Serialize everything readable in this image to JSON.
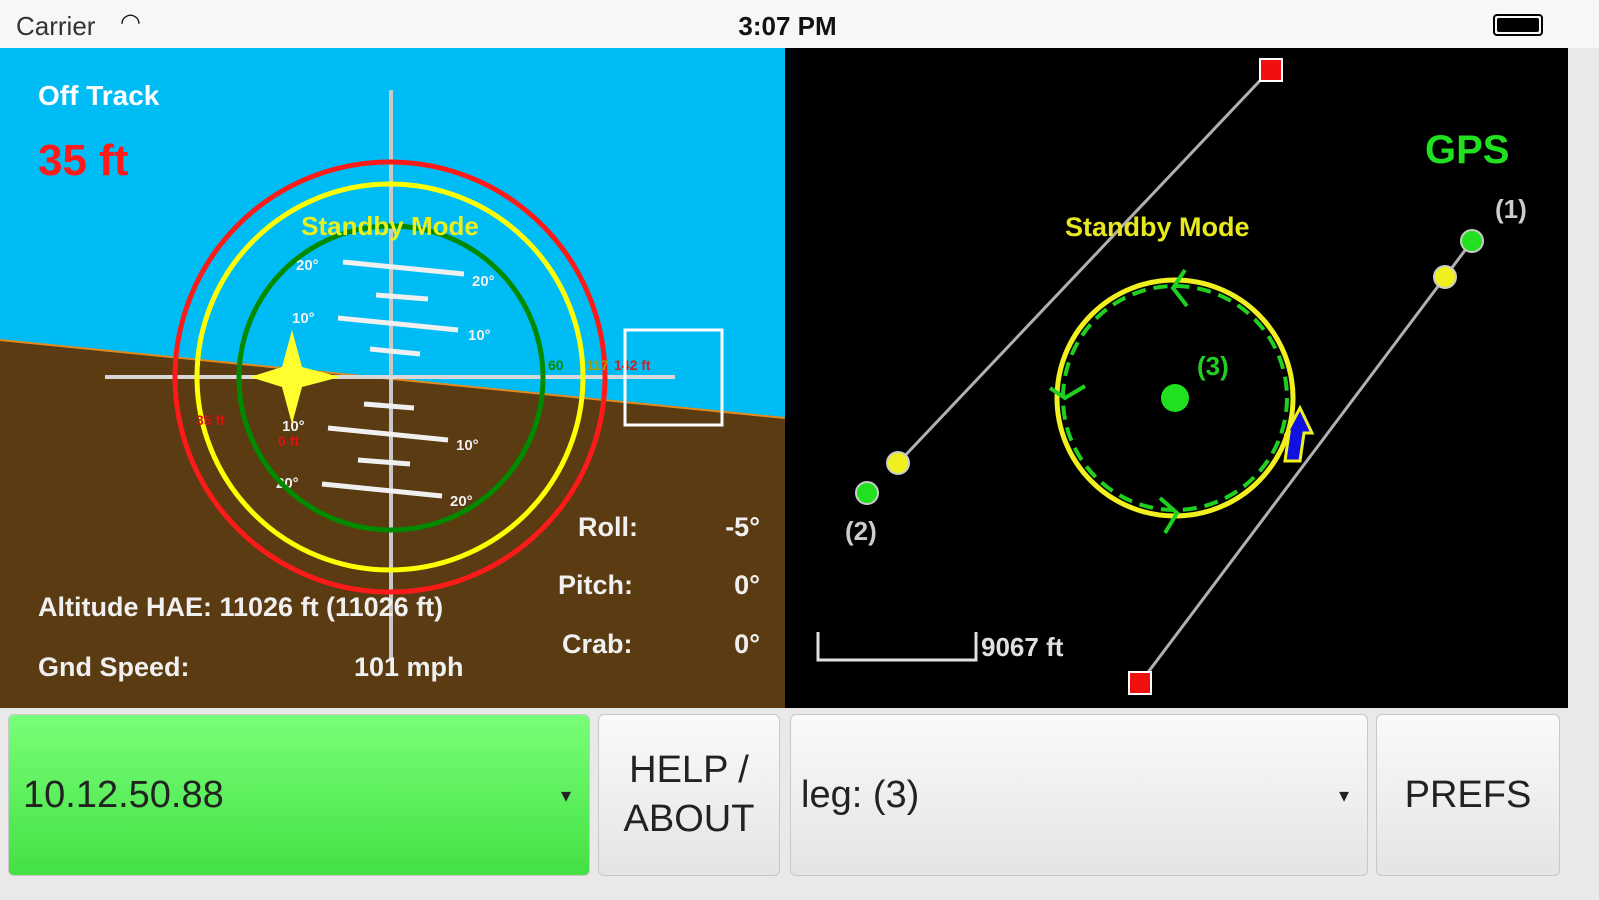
{
  "status_bar": {
    "carrier": "Carrier",
    "time": "3:07 PM"
  },
  "attitude": {
    "off_track_label": "Off Track",
    "off_track_value": "35 ft",
    "mode": "Standby Mode",
    "pitch_labels": [
      "20°",
      "10°",
      "10°",
      "20°"
    ],
    "left_marker_labels": [
      "35 ft",
      "0 ft"
    ],
    "right_marker_labels": [
      "60",
      "117",
      "142 ft"
    ],
    "altitude_label": "Altitude HAE: 11026 ft (11026 ft)",
    "gnd_speed_label": "Gnd Speed:",
    "gnd_speed_value": "101 mph",
    "roll_label": "Roll:",
    "roll_value": "-5°",
    "pitch_label": "Pitch:",
    "pitch_value": "0°",
    "crab_label": "Crab:",
    "crab_value": "0°",
    "colors": {
      "sky": "#00bcf5",
      "ground": "#5a3b12",
      "red": "#ff1a1a",
      "yellow": "#ffff00",
      "green": "#008a00"
    }
  },
  "map": {
    "source": "GPS",
    "mode": "Standby Mode",
    "waypoints": [
      "(1)",
      "(2)",
      "(3)"
    ],
    "scale_label": "9067 ft"
  },
  "controls": {
    "address": "10.12.50.88",
    "help_line1": "HELP /",
    "help_line2": "ABOUT",
    "leg": "leg: (3)",
    "prefs": "PREFS"
  }
}
